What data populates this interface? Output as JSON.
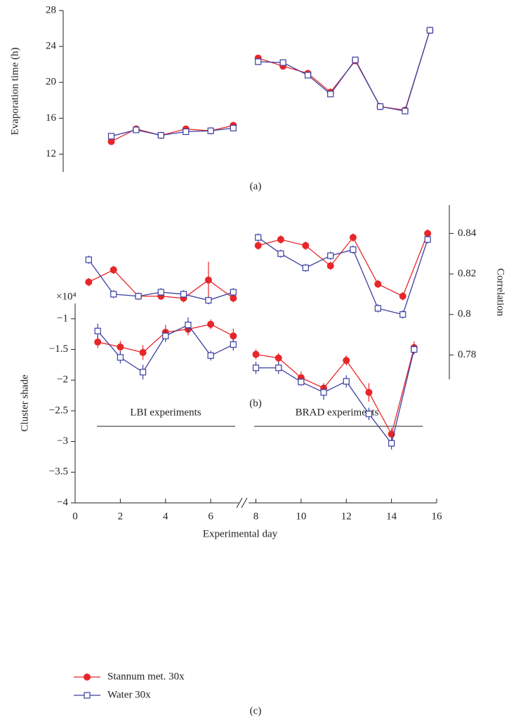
{
  "chart_data": [
    {
      "type": "line",
      "label": "(a)",
      "ylabel": "Evaporation time (h)",
      "ylim": [
        10,
        28
      ],
      "yticks": [
        12,
        16,
        20,
        24,
        28
      ],
      "x": [
        1.6,
        2.7,
        3.8,
        4.9,
        6.0,
        7.0,
        null,
        8.1,
        9.2,
        10.3,
        11.3,
        12.4,
        13.5,
        14.6,
        15.7
      ],
      "series": [
        {
          "color": "#e8262a",
          "marker": "circle",
          "values": [
            13.4,
            14.8,
            14.1,
            14.8,
            14.6,
            15.2,
            null,
            22.7,
            21.8,
            21.0,
            18.9,
            22.4,
            17.3,
            16.9,
            25.8
          ]
        },
        {
          "color": "#3a3fa0",
          "marker": "square",
          "values": [
            14.0,
            14.7,
            14.1,
            14.5,
            14.6,
            14.9,
            null,
            22.3,
            22.2,
            20.8,
            18.7,
            22.5,
            17.3,
            16.8,
            25.8
          ]
        }
      ]
    },
    {
      "type": "line",
      "label": "(b)",
      "ylabel": "Correlation",
      "yaxis_side": "right",
      "ylim": [
        0.768,
        0.854
      ],
      "yticks": [
        0.78,
        0.8,
        0.82,
        0.84
      ],
      "x": [
        0.6,
        1.7,
        2.8,
        3.8,
        4.8,
        5.9,
        7.0,
        null,
        8.1,
        9.1,
        10.2,
        11.3,
        12.3,
        13.4,
        14.5,
        15.6
      ],
      "series": [
        {
          "color": "#e8262a",
          "marker": "circle",
          "values": [
            0.816,
            0.822,
            0.809,
            0.809,
            0.808,
            0.817,
            0.808,
            null,
            0.834,
            0.837,
            0.834,
            0.824,
            0.838,
            0.815,
            0.809,
            0.84
          ],
          "errors": [
            0.002,
            0.002,
            0.001,
            0.001,
            0.002,
            0.009,
            0.002,
            null,
            0.002,
            0.002,
            0.002,
            0.002,
            0.002,
            0.002,
            0.002,
            0.002
          ]
        },
        {
          "color": "#3a3fa0",
          "marker": "square",
          "values": [
            0.827,
            0.81,
            0.809,
            0.811,
            0.81,
            0.807,
            0.811,
            null,
            0.838,
            0.83,
            0.823,
            0.829,
            0.832,
            0.803,
            0.8,
            0.837
          ],
          "errors": [
            0.002,
            0.002,
            0.001,
            0.002,
            0.002,
            0.002,
            0.002,
            null,
            0.002,
            0.002,
            0.002,
            0.002,
            0.002,
            0.002,
            0.002,
            0.002
          ]
        }
      ]
    },
    {
      "type": "line",
      "label": "(c)",
      "ylabel": "Cluster shade",
      "xlabel": "Experimental day",
      "multiplier": "×10⁴",
      "xlim": [
        0,
        16
      ],
      "xticks": [
        0,
        2,
        4,
        6,
        8,
        10,
        12,
        14,
        16
      ],
      "ylim": [
        -4,
        -0.75
      ],
      "yticks": [
        {
          "value": -1,
          "label": "−1"
        },
        {
          "value": -1.5,
          "label": "−1.5"
        },
        {
          "value": -2,
          "label": "−2"
        },
        {
          "value": -2.5,
          "label": "−2.5"
        },
        {
          "value": -3,
          "label": "−3"
        },
        {
          "value": -3.5,
          "label": "−3.5"
        },
        {
          "value": -4,
          "label": "−4"
        }
      ],
      "annotations": [
        "LBI experiments",
        "BRAD experiments"
      ],
      "x": [
        1,
        2,
        3,
        4,
        5,
        6,
        7,
        null,
        8,
        9,
        10,
        11,
        12,
        13,
        14,
        15
      ],
      "series": [
        {
          "name": "Stannum met. 30x",
          "color": "#e8262a",
          "marker": "circle",
          "values": [
            -1.38,
            -1.46,
            -1.55,
            -1.22,
            -1.17,
            -1.09,
            -1.28,
            null,
            -1.58,
            -1.64,
            -1.96,
            -2.13,
            -1.68,
            -2.2,
            -2.88,
            -1.47
          ],
          "errors": [
            0.1,
            0.1,
            0.12,
            0.12,
            0.1,
            0.08,
            0.12,
            null,
            0.08,
            0.08,
            0.1,
            0.08,
            0.08,
            0.15,
            0.1,
            0.1
          ]
        },
        {
          "name": "Water 30x",
          "color": "#3a3fa0",
          "marker": "square",
          "values": [
            -1.2,
            -1.63,
            -1.87,
            -1.28,
            -1.1,
            -1.6,
            -1.42,
            null,
            -1.8,
            -1.8,
            -2.03,
            -2.2,
            -2.02,
            -2.55,
            -3.03,
            -1.5
          ],
          "errors": [
            0.12,
            0.1,
            0.12,
            0.1,
            0.12,
            0.08,
            0.1,
            null,
            0.1,
            0.1,
            0.06,
            0.12,
            0.1,
            0.1,
            0.1,
            0.08
          ]
        }
      ]
    }
  ]
}
